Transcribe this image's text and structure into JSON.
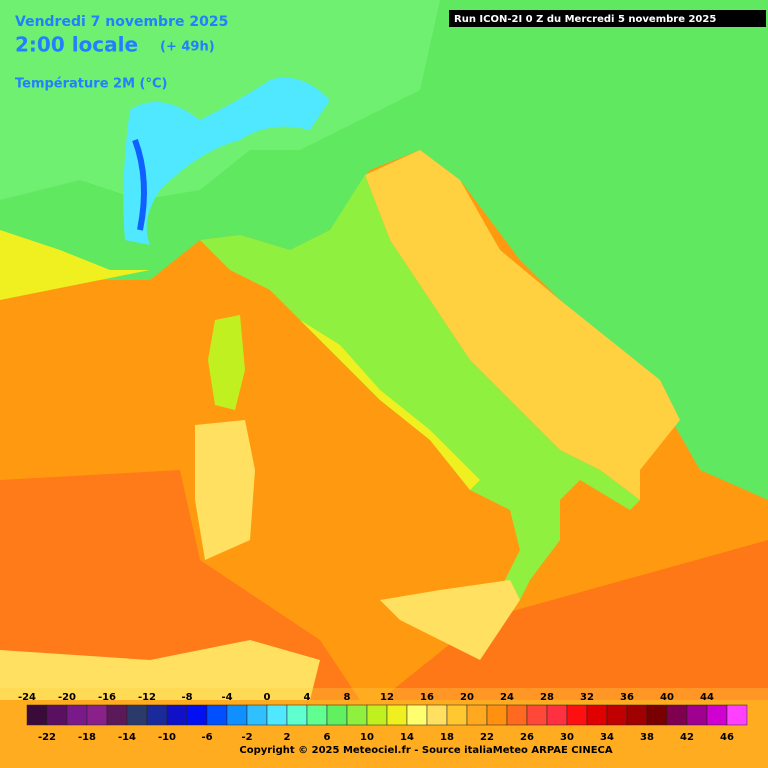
{
  "header": {
    "date": "Vendredi 7 novembre 2025",
    "time": "2:00 locale",
    "lead": "(+ 49h)",
    "parameter": "Température 2M (°C)",
    "run": "Run ICON-2I 0 Z du Mercredi 5 novembre 2025"
  },
  "colorbar": {
    "ticks": [
      -24,
      -22,
      -20,
      -18,
      -16,
      -14,
      -12,
      -10,
      -8,
      -6,
      -4,
      -2,
      0,
      2,
      4,
      6,
      8,
      10,
      12,
      14,
      16,
      18,
      20,
      22,
      24,
      26,
      28,
      30,
      32,
      34,
      36,
      38,
      40,
      42,
      44,
      46
    ],
    "colors": [
      "#3a0a3a",
      "#5a1060",
      "#7a1a8a",
      "#8a208a",
      "#5a1a5a",
      "#2a3a6a",
      "#1a2a9a",
      "#1010c8",
      "#0010f0",
      "#0050ff",
      "#1090ff",
      "#30c0ff",
      "#50e8ff",
      "#60ffd0",
      "#60ff90",
      "#60f060",
      "#90f040",
      "#c0f020",
      "#f0f020",
      "#ffff70",
      "#ffe060",
      "#ffc830",
      "#ffa820",
      "#ff9010",
      "#ff6a20",
      "#ff4838",
      "#ff3040",
      "#ff1010",
      "#e00000",
      "#c00000",
      "#a00000",
      "#780000",
      "#800050",
      "#a00090",
      "#d000d0",
      "#ff40ff"
    ]
  },
  "footer": {
    "copyright": "Copyright © 2025 Meteociel.fr - Source italiaMeteo ARPAE CINECA"
  }
}
